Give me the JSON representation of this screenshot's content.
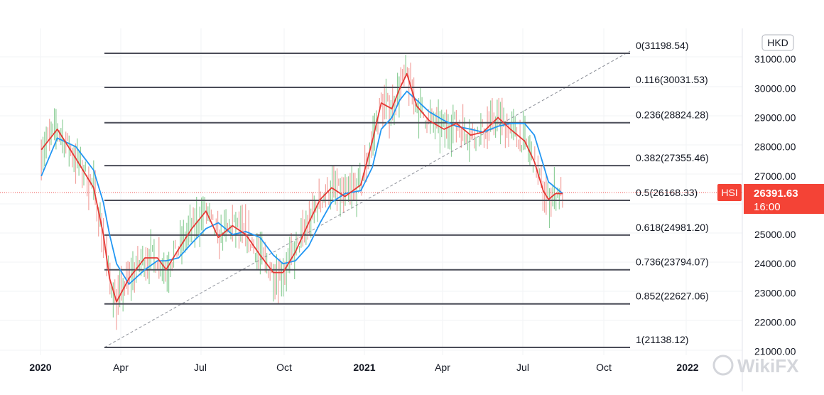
{
  "chart_data": {
    "type": "line",
    "title": "",
    "symbol": "HSI",
    "currency": "HKD",
    "last_price": "26391.63",
    "last_time": "16:00",
    "ylim": [
      21000,
      31500
    ],
    "y_ticks": [
      "31000.00",
      "30000.00",
      "29000.00",
      "28000.00",
      "27000.00",
      "25000.00",
      "24000.00",
      "23000.00",
      "22000.00",
      "21000.00"
    ],
    "x_ticks": [
      {
        "label": "2020",
        "bold": true
      },
      {
        "label": "Apr",
        "bold": false
      },
      {
        "label": "Jul",
        "bold": false
      },
      {
        "label": "Oct",
        "bold": false
      },
      {
        "label": "2021",
        "bold": true
      },
      {
        "label": "Apr",
        "bold": false
      },
      {
        "label": "Jul",
        "bold": false
      },
      {
        "label": "Oct",
        "bold": false
      },
      {
        "label": "2022",
        "bold": true
      }
    ],
    "fibonacci": [
      {
        "ratio": "0",
        "price": 31198.54
      },
      {
        "ratio": "0.116",
        "price": 30031.53
      },
      {
        "ratio": "0.236",
        "price": 28824.28
      },
      {
        "ratio": "0.382",
        "price": 27355.46
      },
      {
        "ratio": "0.5",
        "price": 26168.33
      },
      {
        "ratio": "0.618",
        "price": 24981.2
      },
      {
        "ratio": "0.736",
        "price": 23794.07
      },
      {
        "ratio": "0.852",
        "price": 22627.06
      },
      {
        "ratio": "1",
        "price": 21138.12
      }
    ],
    "series": [
      {
        "name": "",
        "color": "#e53935",
        "x": [
          "2020-01-02",
          "2020-01-20",
          "2020-02-10",
          "2020-03-01",
          "2020-03-12",
          "2020-03-19",
          "2020-03-27",
          "2020-04-10",
          "2020-04-28",
          "2020-05-12",
          "2020-05-22",
          "2020-06-05",
          "2020-06-20",
          "2020-07-06",
          "2020-07-20",
          "2020-08-05",
          "2020-08-20",
          "2020-09-05",
          "2020-09-20",
          "2020-10-01",
          "2020-10-15",
          "2020-10-30",
          "2020-11-12",
          "2020-11-25",
          "2020-12-10",
          "2020-12-28",
          "2021-01-10",
          "2021-01-20",
          "2021-02-01",
          "2021-02-10",
          "2021-02-18",
          "2021-03-01",
          "2021-03-15",
          "2021-04-01",
          "2021-04-15",
          "2021-05-01",
          "2021-05-15",
          "2021-06-01",
          "2021-06-15",
          "2021-07-01",
          "2021-07-12",
          "2021-07-22",
          "2021-07-28",
          "2021-08-05",
          "2021-08-13"
        ],
        "y": [
          27900,
          28600,
          27600,
          26600,
          25000,
          23500,
          22700,
          23500,
          24200,
          24200,
          23800,
          24500,
          25200,
          25800,
          24900,
          25300,
          25000,
          24300,
          23700,
          23700,
          24400,
          25400,
          26200,
          26600,
          26300,
          26700,
          28200,
          29500,
          29300,
          30000,
          30500,
          29400,
          28900,
          28600,
          28800,
          28400,
          28500,
          29000,
          28600,
          28200,
          27500,
          26500,
          26200,
          26400,
          26400
        ]
      },
      {
        "name": "",
        "color": "#2196f3",
        "x": [
          "2020-01-02",
          "2020-01-20",
          "2020-02-10",
          "2020-03-01",
          "2020-03-12",
          "2020-03-19",
          "2020-03-27",
          "2020-04-10",
          "2020-04-28",
          "2020-05-12",
          "2020-05-22",
          "2020-06-05",
          "2020-06-20",
          "2020-07-06",
          "2020-07-20",
          "2020-08-05",
          "2020-08-20",
          "2020-09-05",
          "2020-09-20",
          "2020-10-01",
          "2020-10-15",
          "2020-10-30",
          "2020-11-12",
          "2020-11-25",
          "2020-12-10",
          "2020-12-28",
          "2021-01-10",
          "2021-01-20",
          "2021-02-01",
          "2021-02-10",
          "2021-02-18",
          "2021-03-01",
          "2021-03-15",
          "2021-04-01",
          "2021-04-15",
          "2021-05-01",
          "2021-05-15",
          "2021-06-01",
          "2021-06-15",
          "2021-07-01",
          "2021-07-12",
          "2021-07-22",
          "2021-07-28",
          "2021-08-05",
          "2021-08-13"
        ],
        "y": [
          27000,
          28300,
          28000,
          27200,
          26100,
          25000,
          24000,
          23300,
          23800,
          24100,
          24100,
          24200,
          24700,
          25200,
          25400,
          25000,
          25100,
          24900,
          24300,
          24000,
          24100,
          24600,
          25400,
          26100,
          26400,
          26500,
          27300,
          28600,
          29000,
          29600,
          29900,
          29600,
          29200,
          28900,
          28700,
          28600,
          28500,
          28700,
          28800,
          28800,
          28400,
          27400,
          26800,
          26600,
          26400
        ]
      }
    ]
  },
  "watermark": "WikiFX"
}
